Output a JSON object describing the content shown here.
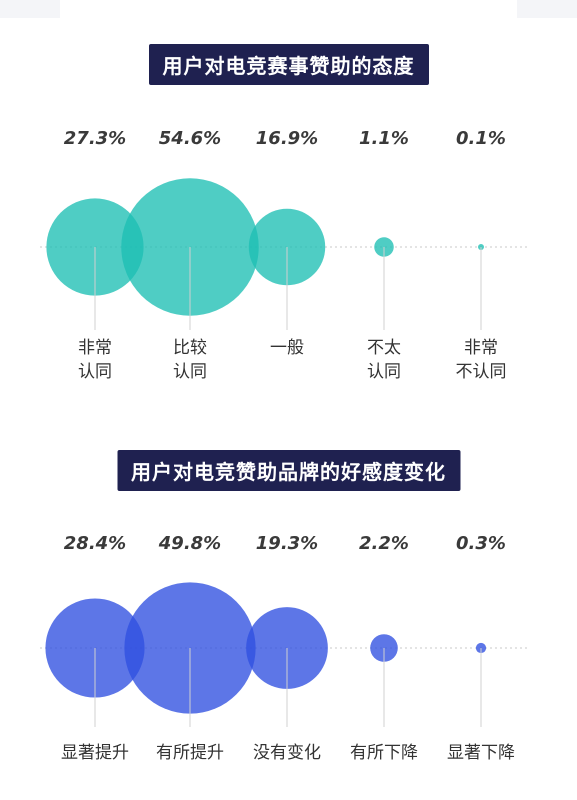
{
  "chart_data": [
    {
      "type": "bubble",
      "title": "用户对电竞赛事赞助的态度",
      "categories": [
        [
          "非常",
          "认同"
        ],
        [
          "比较",
          "认同"
        ],
        [
          "一般"
        ],
        [
          "不太",
          "认同"
        ],
        [
          "非常",
          "不认同"
        ]
      ],
      "value_labels": [
        "27.3%",
        "54.6%",
        "16.9%",
        "1.1%",
        "0.1%"
      ],
      "values": [
        27.3,
        54.6,
        16.9,
        1.1,
        0.1
      ],
      "color": "#1dbfb3"
    },
    {
      "type": "bubble",
      "title": "用户对电竞赞助品牌的好感度变化",
      "categories": [
        [
          "显著提升"
        ],
        [
          "有所提升"
        ],
        [
          "没有变化"
        ],
        [
          "有所下降"
        ],
        [
          "显著下降"
        ]
      ],
      "value_labels": [
        "28.4%",
        "49.8%",
        "19.3%",
        "2.2%",
        "0.3%"
      ],
      "values": [
        28.4,
        49.8,
        19.3,
        2.2,
        0.3
      ],
      "color": "#2f4fe0"
    }
  ]
}
